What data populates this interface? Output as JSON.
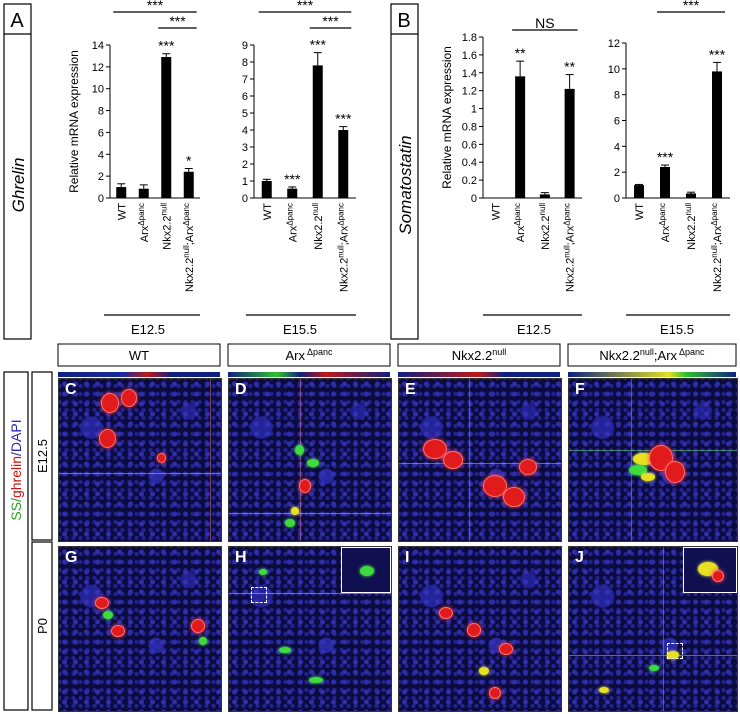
{
  "panel_a": {
    "letter": "A",
    "gene": "Ghrelin",
    "e12_label": "E12.5",
    "e15_label": "E15.5"
  },
  "panel_b": {
    "letter": "B",
    "gene": "Somatostatin",
    "e12_label": "E12.5",
    "e15_label": "E15.5"
  },
  "genotypes": [
    {
      "base": "WT",
      "sup": ""
    },
    {
      "base": "Arx",
      "sup": "Δpanc"
    },
    {
      "base": "Nkx2.2",
      "sup": "null"
    },
    {
      "base": "Nkx2.2",
      "sup": "null",
      "tail": ";Arx",
      "sup2": "Δpanc"
    }
  ],
  "chart_data": [
    {
      "type": "bar",
      "panel": "A",
      "stage": "E12.5",
      "ylabel": "Relative mRNA expression",
      "ylim": [
        0,
        14
      ],
      "yticks": [
        0,
        2,
        4,
        6,
        8,
        10,
        12,
        14
      ],
      "values": [
        1.0,
        0.85,
        12.9,
        2.4
      ],
      "errors": [
        0.3,
        0.35,
        0.3,
        0.3
      ],
      "bar_stars": [
        "",
        "",
        "***",
        "*"
      ],
      "comparisons": [
        {
          "from": 0,
          "to": 3,
          "label": "***"
        },
        {
          "from": 2,
          "to": 3,
          "label": "***"
        }
      ]
    },
    {
      "type": "bar",
      "panel": "A",
      "stage": "E15.5",
      "ylabel": "",
      "ylim": [
        0,
        9
      ],
      "yticks": [
        0,
        1,
        2,
        3,
        4,
        5,
        6,
        7,
        8,
        9
      ],
      "values": [
        1.0,
        0.55,
        7.8,
        4.0
      ],
      "errors": [
        0.1,
        0.1,
        0.75,
        0.2
      ],
      "bar_stars": [
        "",
        "***",
        "***",
        "***"
      ],
      "comparisons": [
        {
          "from": 0,
          "to": 3,
          "label": "***"
        },
        {
          "from": 2,
          "to": 3,
          "label": "***"
        }
      ]
    },
    {
      "type": "bar",
      "panel": "B",
      "stage": "E12.5",
      "ylabel": "Relative mRNA expression",
      "ylim": [
        0,
        1.8
      ],
      "yticks": [
        0,
        0.2,
        0.4,
        0.6,
        0.8,
        1,
        1.2,
        1.4,
        1.6,
        1.8
      ],
      "yticklabels": [
        "0",
        "0.2",
        "0.4",
        "0.6",
        "0.8",
        "1",
        "1.2",
        "1.4",
        "1.6",
        "1.8"
      ],
      "values": [
        0.0,
        1.36,
        0.04,
        1.22
      ],
      "errors": [
        0.0,
        0.17,
        0.02,
        0.16
      ],
      "bar_stars": [
        "",
        "**",
        "",
        "**"
      ],
      "comparisons": [
        {
          "from": 1,
          "to": 3,
          "label": "NS"
        }
      ]
    },
    {
      "type": "bar",
      "panel": "B",
      "stage": "E15.5",
      "ylabel": "",
      "ylim": [
        0,
        12
      ],
      "yticks": [
        0,
        2,
        4,
        6,
        8,
        10,
        12
      ],
      "values": [
        1.0,
        2.4,
        0.35,
        9.8
      ],
      "errors": [
        0.05,
        0.15,
        0.1,
        0.7
      ],
      "bar_stars": [
        "",
        "***",
        "",
        "***"
      ],
      "comparisons": [
        {
          "from": 1,
          "to": 3,
          "label": "***"
        }
      ]
    }
  ],
  "micrographs": {
    "columns": [
      "WT",
      "Arx",
      "Nkx2.2",
      "Nkx2.2"
    ],
    "column_sups": [
      "",
      "Δpanc",
      "null",
      "null"
    ],
    "column_tails": [
      "",
      "",
      "",
      ";Arx"
    ],
    "column_sup2": [
      "",
      "",
      "",
      "Δpanc"
    ],
    "row_stain_ss": "SS/",
    "row_stain_ghrelin": "ghrelin",
    "row_stain_dapi": "/DAPI",
    "row_e12": "E12.5",
    "row_p0": "P0",
    "colors": {
      "ss": "#2aa02a",
      "ghrelin": "#d01010",
      "dapi": "#2a2ab0"
    },
    "panels": [
      {
        "letter": "C"
      },
      {
        "letter": "D"
      },
      {
        "letter": "E"
      },
      {
        "letter": "F"
      },
      {
        "letter": "G"
      },
      {
        "letter": "H"
      },
      {
        "letter": "I"
      },
      {
        "letter": "J"
      }
    ]
  }
}
